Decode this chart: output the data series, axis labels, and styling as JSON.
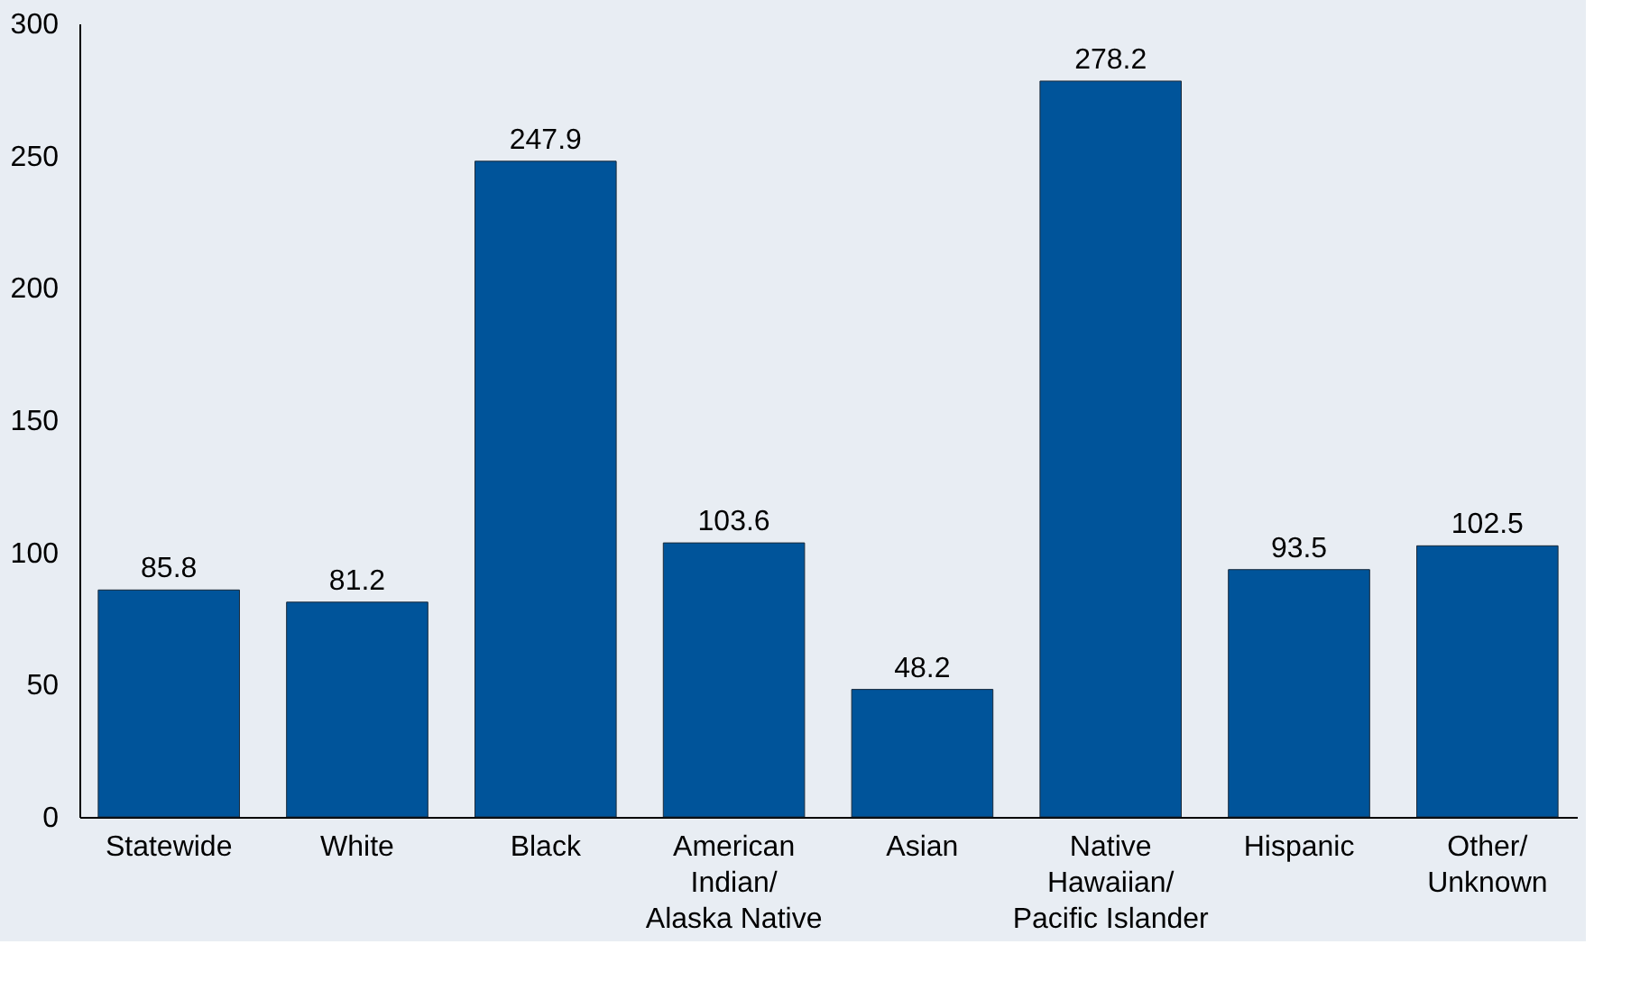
{
  "chart_data": {
    "type": "bar",
    "categories": [
      "Statewide",
      "White",
      "Black",
      "American Indian/Alaska Native",
      "Asian",
      "Native Hawaiian/Pacific Islander",
      "Hispanic",
      "Other/Unknown"
    ],
    "values": [
      85.8,
      81.2,
      247.9,
      103.6,
      48.2,
      278.2,
      93.5,
      102.5
    ],
    "color": "#00549a",
    "ylim": [
      0,
      300
    ],
    "yticks": [
      0,
      50,
      100,
      150,
      200,
      250,
      300
    ],
    "grid": false,
    "data_labels": true
  }
}
